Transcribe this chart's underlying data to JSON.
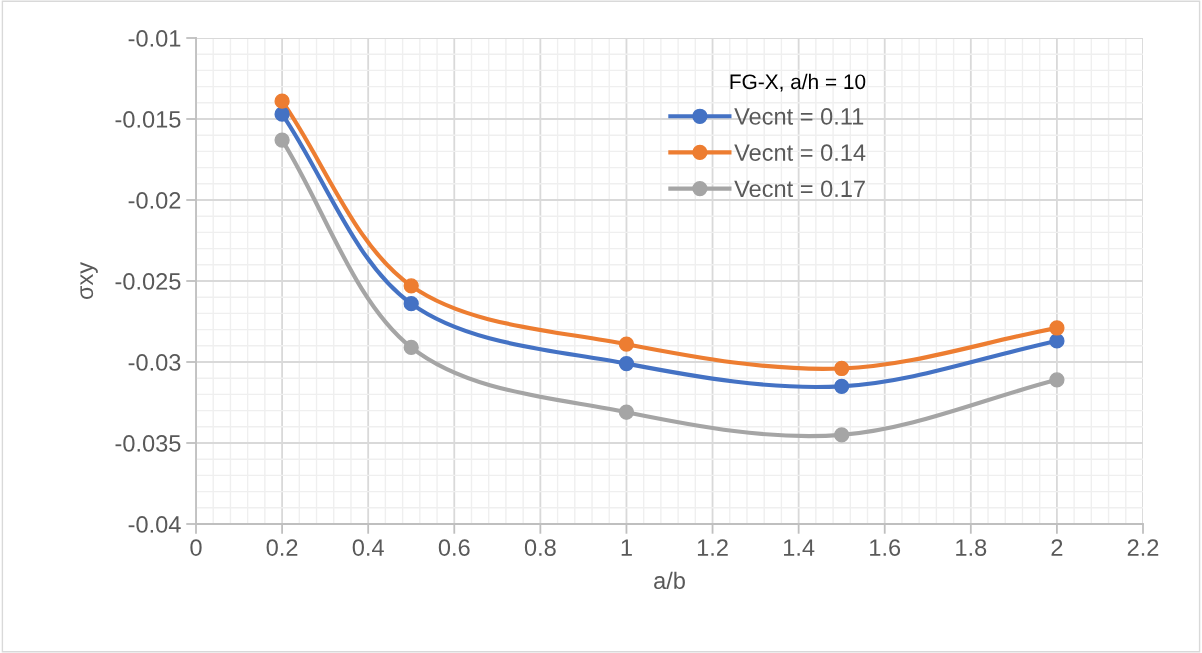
{
  "chart_data": {
    "type": "line",
    "xlabel": "a/b",
    "ylabel": "σxy",
    "legend_title": "FG-X, a/h = 10",
    "x": [
      0.2,
      0.5,
      1,
      1.5,
      2
    ],
    "series": [
      {
        "name": "Vecnt = 0.11",
        "color": "#4472c4",
        "values": [
          -0.0147,
          -0.0264,
          -0.0301,
          -0.0315,
          -0.0287
        ]
      },
      {
        "name": "Vecnt = 0.14",
        "color": "#ed7d31",
        "values": [
          -0.0139,
          -0.0253,
          -0.0289,
          -0.0304,
          -0.0279
        ]
      },
      {
        "name": "Vecnt = 0.17",
        "color": "#a5a5a5",
        "values": [
          -0.0163,
          -0.0291,
          -0.0331,
          -0.0345,
          -0.0311
        ]
      }
    ],
    "xlim": [
      0,
      2.2
    ],
    "xticks": [
      0,
      0.2,
      0.4,
      0.6,
      0.8,
      1,
      1.2,
      1.4,
      1.6,
      1.8,
      2,
      2.2
    ],
    "ylim": [
      -0.04,
      -0.01
    ],
    "yticks": [
      -0.04,
      -0.035,
      -0.03,
      -0.025,
      -0.02,
      -0.015,
      -0.01
    ],
    "grid": true,
    "legend": "top right",
    "marker": "circle",
    "line_style": "solid"
  }
}
